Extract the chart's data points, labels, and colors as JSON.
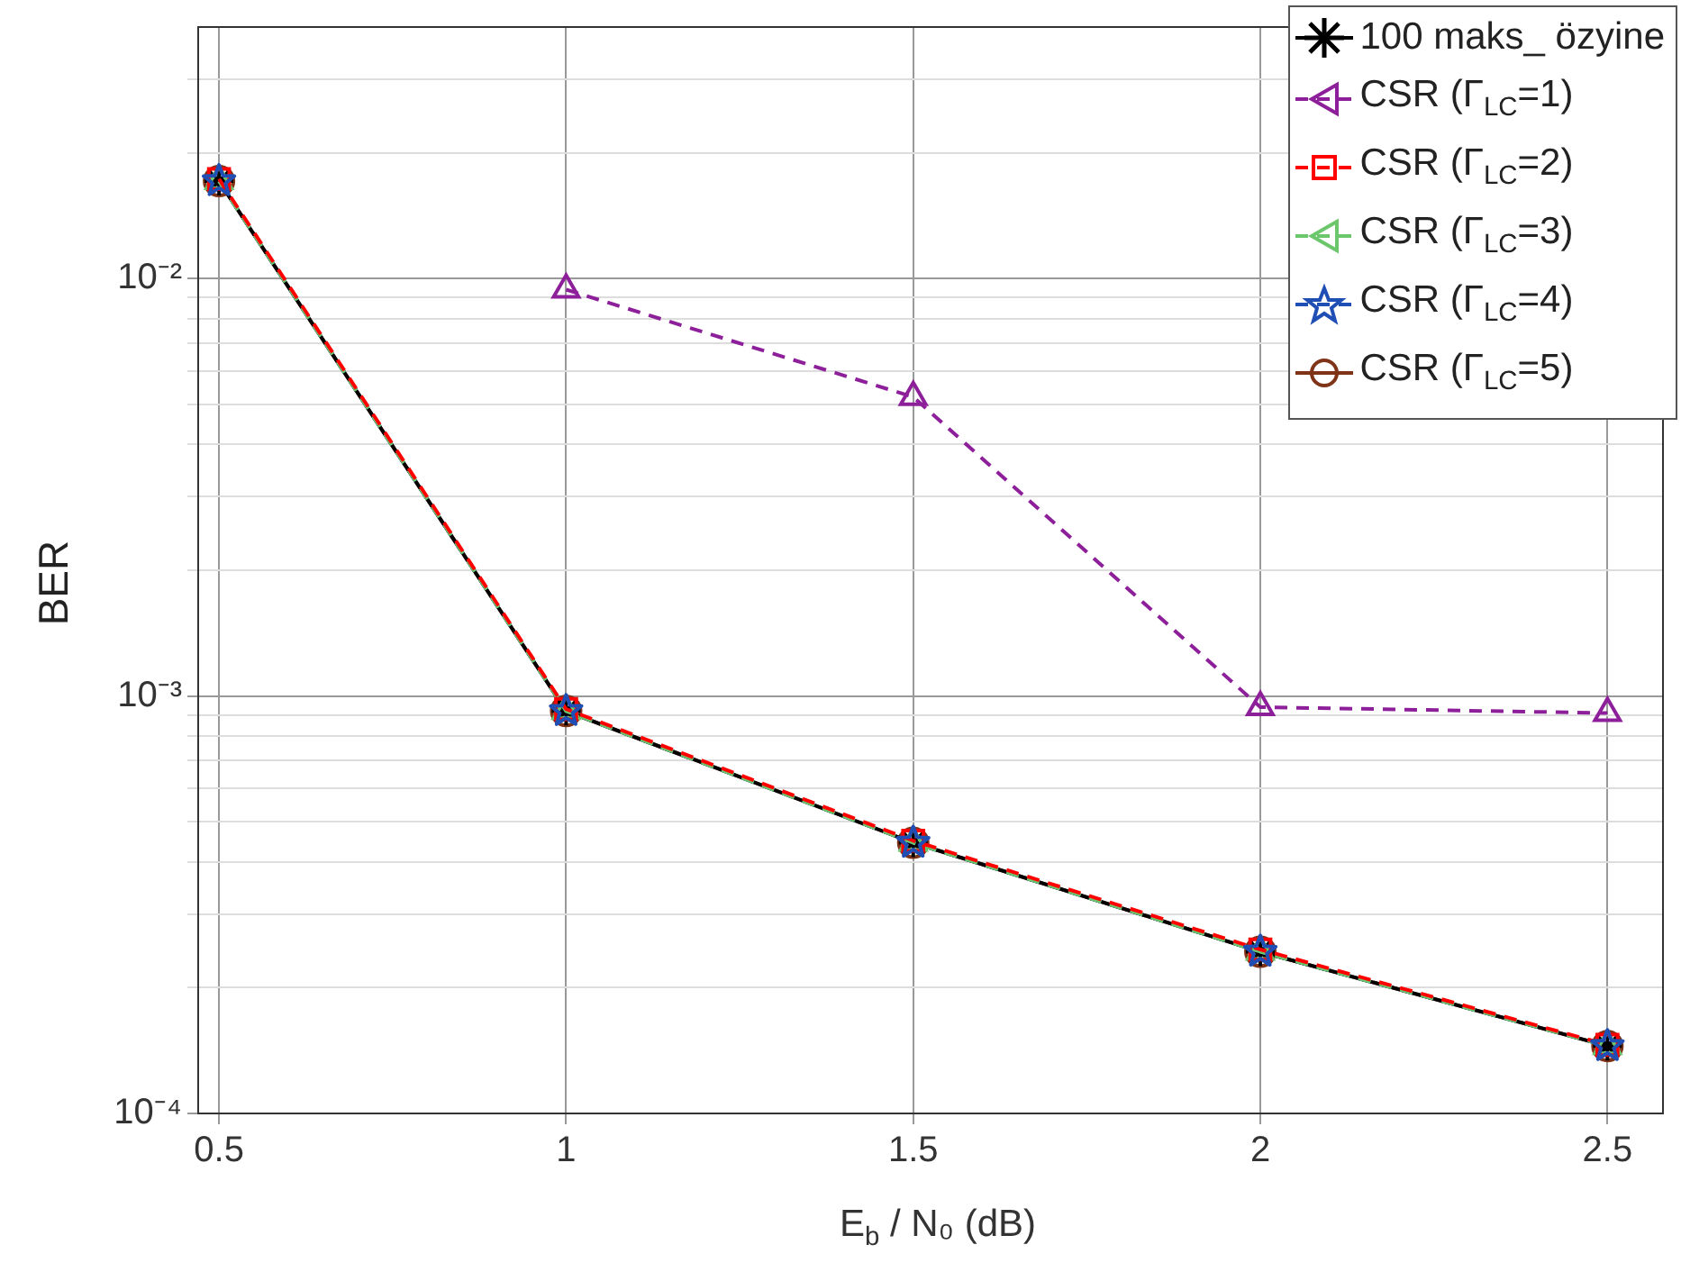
{
  "chart_data": {
    "type": "line",
    "xlabel": "E$_{b}$ / N₀ (dB)",
    "ylabel": "BER",
    "x": [
      0.5,
      1,
      1.5,
      2,
      2.5
    ],
    "series": [
      {
        "name": "100 maks_ özyine",
        "color": "#000000",
        "marker": "cross",
        "line_style": "solid",
        "values": [
          0.0171,
          0.00092,
          0.000445,
          0.000244,
          0.000145
        ]
      },
      {
        "name": "CSR (Γ$_{LC}$=1)",
        "color": "#8e1f9a",
        "marker": "triangle",
        "line_style": "dashed",
        "values": [
          null,
          0.0094,
          0.0052,
          0.00094,
          0.00091
        ]
      },
      {
        "name": "CSR (Γ$_{LC}$=2)",
        "color": "#ff0000",
        "marker": "square",
        "line_style": "dashed",
        "values": [
          0.0173,
          0.00093,
          0.00045,
          0.000247,
          0.000146
        ]
      },
      {
        "name": "CSR (Γ$_{LC}$=3)",
        "color": "#6cc76c",
        "marker": "triangle",
        "line_style": "dashed",
        "values": [
          0.0171,
          0.00092,
          0.000445,
          0.000244,
          0.000145
        ]
      },
      {
        "name": "CSR (Γ$_{LC}$=4)",
        "color": "#1f4fb4",
        "marker": "star",
        "line_style": "dashed",
        "values": [
          0.0171,
          0.00092,
          0.000445,
          0.000244,
          0.000145
        ]
      },
      {
        "name": "CSR (Γ$_{LC}$=5)",
        "color": "#7f3317",
        "marker": "circle",
        "line_style": "solid",
        "values": [
          0.0171,
          0.00092,
          0.000445,
          0.000244,
          0.000145
        ]
      }
    ],
    "xlim": [
      0.47,
      2.58
    ],
    "xticks": [
      0.5,
      1,
      1.5,
      2,
      2.5
    ],
    "log": "y",
    "ylim": [
      0.0001,
      0.04
    ],
    "yticks": [
      {
        "value": 0.0001,
        "label": "10⁻⁴"
      },
      {
        "value": 0.0002,
        "label": null
      },
      {
        "value": 0.0003,
        "label": null
      },
      {
        "value": 0.0004,
        "label": null
      },
      {
        "value": 0.0005,
        "label": null
      },
      {
        "value": 0.0006,
        "label": null
      },
      {
        "value": 0.0007,
        "label": null
      },
      {
        "value": 0.0008,
        "label": null
      },
      {
        "value": 0.0009,
        "label": null
      },
      {
        "value": 0.001,
        "label": "10⁻³"
      },
      {
        "value": 0.002,
        "label": null
      },
      {
        "value": 0.003,
        "label": null
      },
      {
        "value": 0.004,
        "label": null
      },
      {
        "value": 0.005,
        "label": null
      },
      {
        "value": 0.006,
        "label": null
      },
      {
        "value": 0.007,
        "label": null
      },
      {
        "value": 0.008,
        "label": null
      },
      {
        "value": 0.009,
        "label": null
      },
      {
        "value": 0.01,
        "label": "10⁻²"
      },
      {
        "value": 0.02,
        "label": null
      },
      {
        "value": 0.03,
        "label": null
      }
    ],
    "grid": true,
    "legend": "top right"
  }
}
